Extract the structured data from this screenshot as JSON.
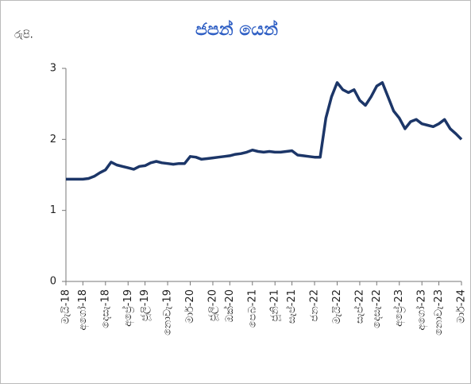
{
  "chart_data": {
    "type": "line",
    "title": "ජපන් යෙන්",
    "y_label": "රුපි.",
    "categories": [
      "මැයි-18",
      null,
      null,
      "අගෝ-18",
      null,
      null,
      null,
      "දෙසැ-18",
      null,
      null,
      null,
      "අප්‍රේ-19",
      null,
      null,
      "ජූලි-19",
      null,
      null,
      null,
      "නොවැ-19",
      null,
      null,
      null,
      "මාර්-20",
      null,
      null,
      null,
      "ජූලි-20",
      null,
      null,
      "ඔක්-20",
      null,
      null,
      null,
      "පෙබ-21",
      null,
      null,
      null,
      "ජූනි-21",
      null,
      null,
      "සැප්-21",
      null,
      null,
      null,
      "ජන-22",
      null,
      null,
      null,
      "මැයි-22",
      null,
      null,
      null,
      "සැප්-22",
      null,
      null,
      "දෙසැ-22",
      null,
      null,
      null,
      "අප්‍රේ-23",
      null,
      null,
      null,
      "අගෝ-23",
      null,
      null,
      "නොවැ-23",
      null,
      null,
      null,
      "මාර්-24"
    ],
    "series": [
      {
        "color": "#1c3668",
        "values": [
          1.44,
          1.44,
          1.44,
          1.44,
          1.45,
          1.48,
          1.53,
          1.57,
          1.68,
          1.64,
          1.62,
          1.6,
          1.58,
          1.62,
          1.63,
          1.67,
          1.69,
          1.67,
          1.66,
          1.65,
          1.66,
          1.66,
          1.76,
          1.75,
          1.72,
          1.73,
          1.74,
          1.75,
          1.76,
          1.77,
          1.79,
          1.8,
          1.82,
          1.85,
          1.83,
          1.82,
          1.83,
          1.82,
          1.82,
          1.83,
          1.84,
          1.78,
          1.77,
          1.76,
          1.75,
          1.75,
          2.3,
          2.6,
          2.8,
          2.7,
          2.66,
          2.7,
          2.55,
          2.48,
          2.6,
          2.75,
          2.8,
          2.6,
          2.4,
          2.3,
          2.15,
          2.25,
          2.28,
          2.22,
          2.2,
          2.18,
          2.22,
          2.28,
          2.15,
          2.08,
          2.0
        ]
      }
    ],
    "ylim": [
      0,
      3
    ],
    "yticks": [
      0,
      1,
      2,
      3
    ],
    "grid": false
  }
}
